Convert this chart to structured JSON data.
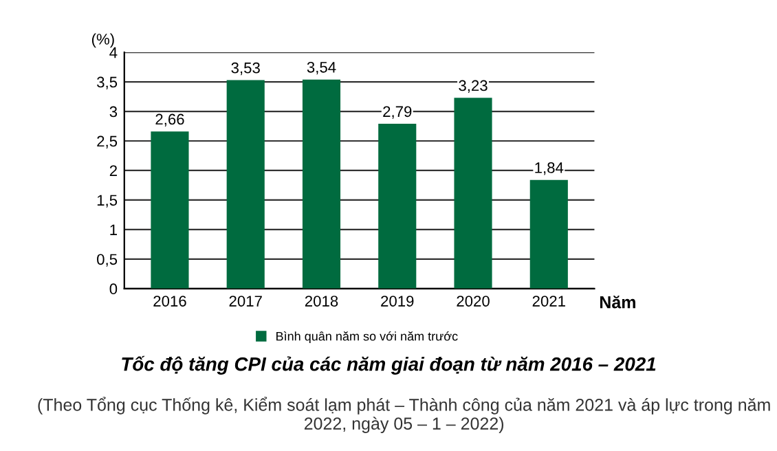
{
  "chart_data": {
    "type": "bar",
    "title": "Tốc độ tăng CPI của các năm giai đoạn từ năm 2016 – 2021",
    "ylabel": "(%)",
    "xlabel": "Năm",
    "categories": [
      "2016",
      "2017",
      "2018",
      "2019",
      "2020",
      "2021"
    ],
    "series": [
      {
        "name": "Bình quân năm so với năm trước",
        "color": "#006b3f",
        "values": [
          2.66,
          3.53,
          3.54,
          2.79,
          3.23,
          1.84
        ]
      }
    ],
    "value_labels": [
      "2,66",
      "3,53",
      "3,54",
      "2,79",
      "3,23",
      "1,84"
    ],
    "ylim": [
      0,
      4
    ],
    "yticks": [
      0,
      {
        "value": 0.5,
        "label": "0,5"
      },
      1,
      {
        "value": 1.5,
        "label": "1,5"
      },
      2,
      {
        "value": 2.5,
        "label": "2,5"
      },
      3,
      {
        "value": 3.5,
        "label": "3,5"
      },
      4
    ],
    "grid": "y",
    "legend": "bottom",
    "annotations": [
      "(Theo Tổng cục Thống kê, Kiểm soát lạm phát – Thành công của năm 2021 và áp lực trong năm 2022, ngày 05 – 1 – 2022)"
    ]
  }
}
